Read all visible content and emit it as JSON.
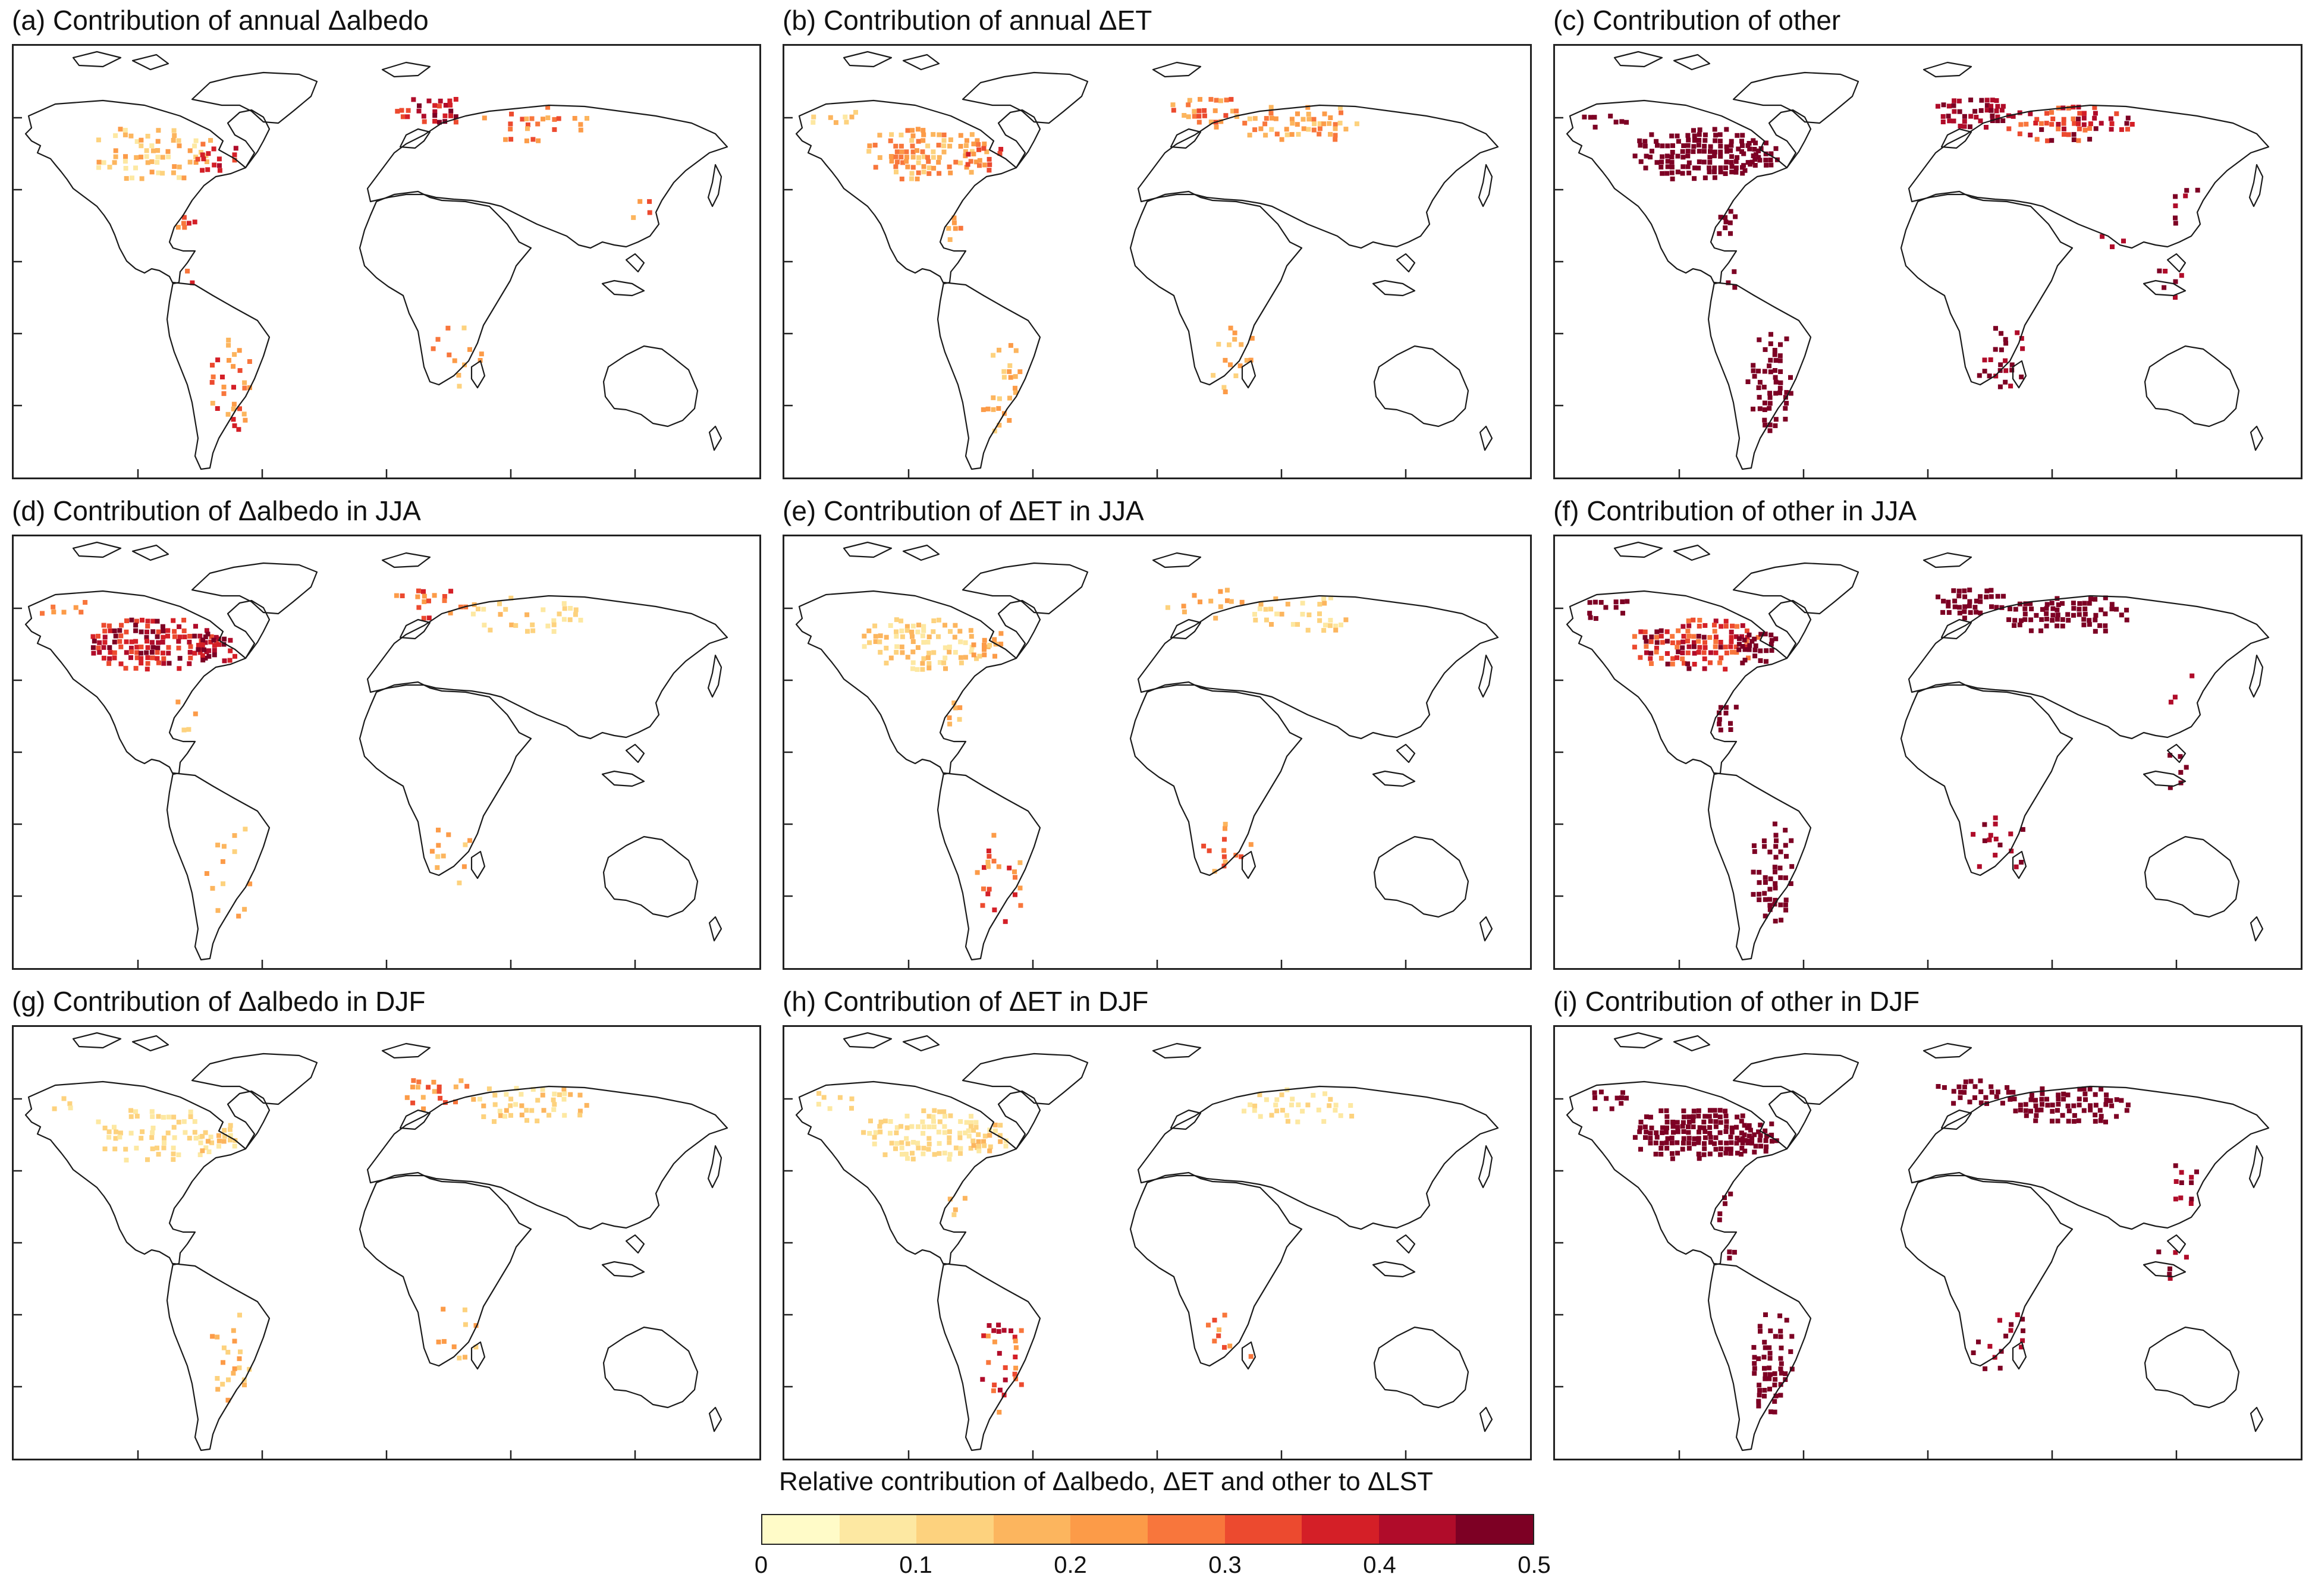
{
  "figure": {
    "panels": [
      {
        "id": "a",
        "title": "(a) Contribution of annual Δalbedo"
      },
      {
        "id": "b",
        "title": "(b) Contribution of annual ΔET"
      },
      {
        "id": "c",
        "title": "(c) Contribution of other"
      },
      {
        "id": "d",
        "title": "(d) Contribution of Δalbedo in JJA"
      },
      {
        "id": "e",
        "title": "(e) Contribution of ΔET in JJA"
      },
      {
        "id": "f",
        "title": "(f) Contribution of other in JJA"
      },
      {
        "id": "g",
        "title": "(g) Contribution of Δalbedo in DJF"
      },
      {
        "id": "h",
        "title": "(h) Contribution of ΔET in DJF"
      },
      {
        "id": "i",
        "title": "(i) Contribution of other in DJF"
      }
    ],
    "colorbar": {
      "title": "Relative contribution of Δalbedo, ΔET and other to ΔLST",
      "colors": [
        "#fffbc8",
        "#fde8a2",
        "#fdd27e",
        "#fcb55e",
        "#fc9b48",
        "#f8763c",
        "#ec4a2f",
        "#d41f27",
        "#b00c2a",
        "#7d0024"
      ],
      "tick_labels": [
        "0",
        "0.1",
        "0.2",
        "0.3",
        "0.4",
        "0.5"
      ],
      "min": 0,
      "max": 0.5
    }
  }
}
